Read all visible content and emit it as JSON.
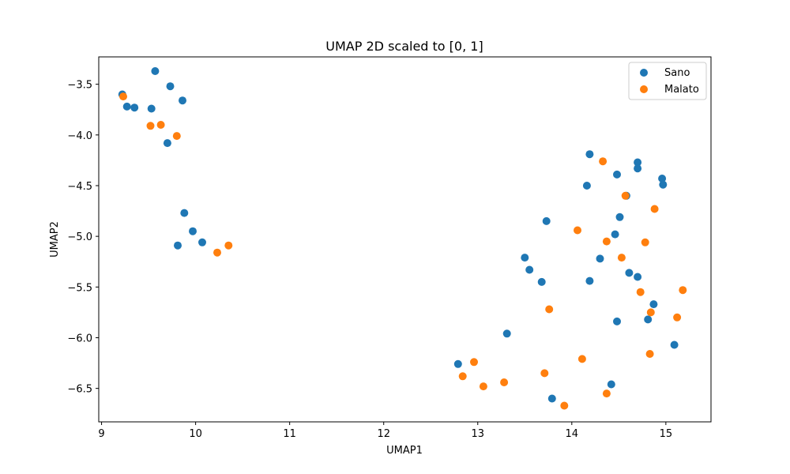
{
  "chart_data": {
    "type": "scatter",
    "title": "UMAP 2D scaled to [0, 1]",
    "xlabel": "UMAP1",
    "ylabel": "UMAP2",
    "xlim": [
      8.97,
      15.48
    ],
    "ylim": [
      -6.83,
      -3.23
    ],
    "xticks": [
      9,
      10,
      11,
      12,
      13,
      14,
      15
    ],
    "yticks": [
      -3.5,
      -4.0,
      -4.5,
      -5.0,
      -5.5,
      -6.0,
      -6.5
    ],
    "ytick_labels": [
      "−3.5",
      "−4.0",
      "−4.5",
      "−5.0",
      "−5.5",
      "−6.0",
      "−6.5"
    ],
    "grid": false,
    "legend_position": "top-right",
    "series": [
      {
        "name": "Sano",
        "color": "#1f77b4",
        "points": [
          [
            9.57,
            -3.37
          ],
          [
            9.73,
            -3.52
          ],
          [
            9.22,
            -3.6
          ],
          [
            9.27,
            -3.72
          ],
          [
            9.35,
            -3.73
          ],
          [
            9.53,
            -3.74
          ],
          [
            9.86,
            -3.66
          ],
          [
            9.7,
            -4.08
          ],
          [
            9.88,
            -4.77
          ],
          [
            9.97,
            -4.95
          ],
          [
            9.81,
            -5.09
          ],
          [
            10.07,
            -5.06
          ],
          [
            14.19,
            -4.19
          ],
          [
            14.7,
            -4.27
          ],
          [
            14.7,
            -4.33
          ],
          [
            14.48,
            -4.39
          ],
          [
            14.96,
            -4.43
          ],
          [
            14.97,
            -4.49
          ],
          [
            14.16,
            -4.5
          ],
          [
            14.58,
            -4.6
          ],
          [
            14.51,
            -4.81
          ],
          [
            13.73,
            -4.85
          ],
          [
            14.46,
            -4.98
          ],
          [
            13.5,
            -5.21
          ],
          [
            13.55,
            -5.33
          ],
          [
            14.3,
            -5.22
          ],
          [
            14.61,
            -5.36
          ],
          [
            14.7,
            -5.4
          ],
          [
            13.68,
            -5.45
          ],
          [
            14.19,
            -5.44
          ],
          [
            14.87,
            -5.67
          ],
          [
            14.48,
            -5.84
          ],
          [
            14.81,
            -5.82
          ],
          [
            13.31,
            -5.96
          ],
          [
            15.09,
            -6.07
          ],
          [
            12.79,
            -6.26
          ],
          [
            14.42,
            -6.46
          ],
          [
            13.79,
            -6.6
          ]
        ]
      },
      {
        "name": "Malato",
        "color": "#ff7f0e",
        "points": [
          [
            9.23,
            -3.62
          ],
          [
            9.52,
            -3.91
          ],
          [
            9.63,
            -3.9
          ],
          [
            9.8,
            -4.01
          ],
          [
            10.23,
            -5.16
          ],
          [
            10.35,
            -5.09
          ],
          [
            14.33,
            -4.26
          ],
          [
            14.57,
            -4.6
          ],
          [
            14.88,
            -4.73
          ],
          [
            14.06,
            -4.94
          ],
          [
            14.37,
            -5.05
          ],
          [
            14.78,
            -5.06
          ],
          [
            14.53,
            -5.21
          ],
          [
            14.73,
            -5.55
          ],
          [
            15.18,
            -5.53
          ],
          [
            13.76,
            -5.72
          ],
          [
            14.84,
            -5.75
          ],
          [
            15.12,
            -5.8
          ],
          [
            14.83,
            -6.16
          ],
          [
            14.11,
            -6.21
          ],
          [
            12.96,
            -6.24
          ],
          [
            13.71,
            -6.35
          ],
          [
            12.84,
            -6.38
          ],
          [
            13.06,
            -6.48
          ],
          [
            13.28,
            -6.44
          ],
          [
            14.37,
            -6.55
          ],
          [
            13.92,
            -6.67
          ]
        ]
      }
    ]
  }
}
